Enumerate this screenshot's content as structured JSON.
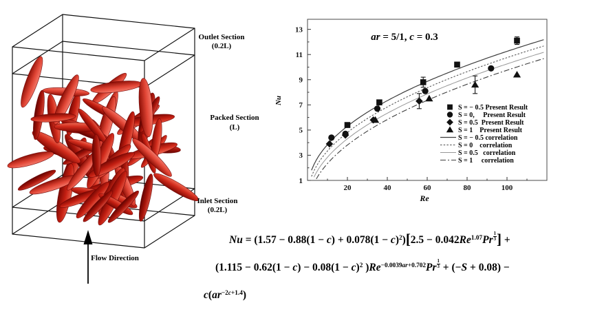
{
  "diagram": {
    "labels": {
      "outlet_line1": "Outlet Section",
      "outlet_line2": "(0.2L)",
      "packed_line1": "Packed Section",
      "packed_line2": "(L)",
      "inlet_line1": "Inlet Section",
      "inlet_line2": "(0.2L)",
      "flow_direction": "Flow Direction"
    },
    "wireframe_color": "#111111",
    "particle": {
      "count": 62,
      "colors": [
        "#e04434",
        "#d12b1c",
        "#c41f12",
        "#a8150b"
      ],
      "light_colors": [
        "#f4796a",
        "#ef6a54",
        "#e65844",
        "#d4493a"
      ],
      "dark_colors": [
        "#8c0f06",
        "#810b04",
        "#770803",
        "#5e0401"
      ],
      "outline": "#6e0404"
    }
  },
  "chart_data": {
    "type": "scatter",
    "title": "ar = 5/1, c = 0.3",
    "xlabel": "Re",
    "ylabel": "Nu",
    "xlim": [
      0,
      120
    ],
    "ylim": [
      1,
      13.8
    ],
    "xticks": [
      20,
      40,
      60,
      80,
      100
    ],
    "yticks": [
      1,
      3,
      5,
      7,
      9,
      11,
      13
    ],
    "x_minor_step": 10,
    "y_minor_step": 1,
    "grid": false,
    "legend_position": "lower-right",
    "marker_color": "#111111",
    "series": [
      {
        "name": "S = − 0.5 Present Result",
        "marker": "square",
        "points": [
          [
            20,
            5.4,
            0
          ],
          [
            36,
            7.2,
            0
          ],
          [
            58,
            8.8,
            0.4
          ],
          [
            75,
            10.2,
            0
          ],
          [
            105,
            12.1,
            0.3
          ]
        ]
      },
      {
        "name": "S = 0,     Present Result",
        "marker": "circle",
        "points": [
          [
            12,
            4.4,
            0
          ],
          [
            19,
            4.7,
            0
          ],
          [
            35,
            6.7,
            0
          ],
          [
            59,
            8.1,
            0
          ],
          [
            92,
            9.9,
            0
          ]
        ]
      },
      {
        "name": "S = 0.5  Present Result",
        "marker": "diamond",
        "points": [
          [
            11,
            3.9,
            0
          ],
          [
            19,
            4.6,
            0
          ],
          [
            33,
            5.8,
            0
          ],
          [
            56,
            7.3,
            0.6
          ]
        ]
      },
      {
        "name": "S = 1    Present Result",
        "marker": "triangle",
        "points": [
          [
            34,
            5.8,
            0
          ],
          [
            61,
            7.5,
            0
          ],
          [
            84,
            8.6,
            0.7
          ],
          [
            105,
            9.4,
            0
          ]
        ]
      }
    ],
    "curves": [
      {
        "name": "S = − 0.5 correlation",
        "style": "solid",
        "a": 1.31,
        "b": 0.467,
        "offset": 0
      },
      {
        "name": "S = 0    correlation",
        "style": "dotted",
        "a": 1.31,
        "b": 0.467,
        "offset": -0.5
      },
      {
        "name": "S = 0.5   correlation",
        "style": "thin",
        "a": 1.31,
        "b": 0.467,
        "offset": -1.0
      },
      {
        "name": "S = 1     correlation",
        "style": "dashdot",
        "a": 1.31,
        "b": 0.467,
        "offset": -1.5
      }
    ]
  },
  "equation": {
    "lines": [
      [
        {
          "t": "Nu",
          "i": 1
        },
        {
          "t": " = (1.57 − 0.88(1 − "
        },
        {
          "t": "c",
          "i": 1
        },
        {
          "t": ") + 0.078(1 − "
        },
        {
          "t": "c",
          "i": 1
        },
        {
          "t": ")"
        },
        {
          "t": "2",
          "sup": 1
        },
        {
          "t": ")"
        },
        {
          "t": "[",
          "big": 1
        },
        {
          "t": "2.5 − 0.042"
        },
        {
          "t": "Re",
          "i": 1
        },
        {
          "t": "1.07",
          "sup": 1
        },
        {
          "t": "Pr",
          "i": 1
        },
        {
          "t": "1|3",
          "frac": 1
        },
        {
          "t": "]",
          "big": 1
        },
        {
          "t": " +"
        }
      ],
      [
        {
          "t": "(1.115 − 0.62(1 − "
        },
        {
          "t": "c",
          "i": 1
        },
        {
          "t": ") − 0.08(1 − "
        },
        {
          "t": "c",
          "i": 1
        },
        {
          "t": ")"
        },
        {
          "t": "2",
          "sup": 1
        },
        {
          "t": " )"
        },
        {
          "t": "Re",
          "i": 1
        },
        {
          "t": "−0.0039",
          "sup": 1
        },
        {
          "t": "ar",
          "sup": 1,
          "i": 1
        },
        {
          "t": "+0.702",
          "sup": 1
        },
        {
          "t": "Pr",
          "i": 1
        },
        {
          "t": "1|3",
          "frac": 1
        },
        {
          "t": " + (−"
        },
        {
          "t": "S",
          "i": 1
        },
        {
          "t": " + 0.08) −"
        }
      ],
      [
        {
          "t": "c",
          "i": 1
        },
        {
          "t": "("
        },
        {
          "t": "ar",
          "i": 1
        },
        {
          "t": "−2",
          "sup": 1
        },
        {
          "t": "c",
          "sup": 1,
          "i": 1
        },
        {
          "t": "+1.4",
          "sup": 1
        },
        {
          "t": ")"
        }
      ]
    ]
  }
}
